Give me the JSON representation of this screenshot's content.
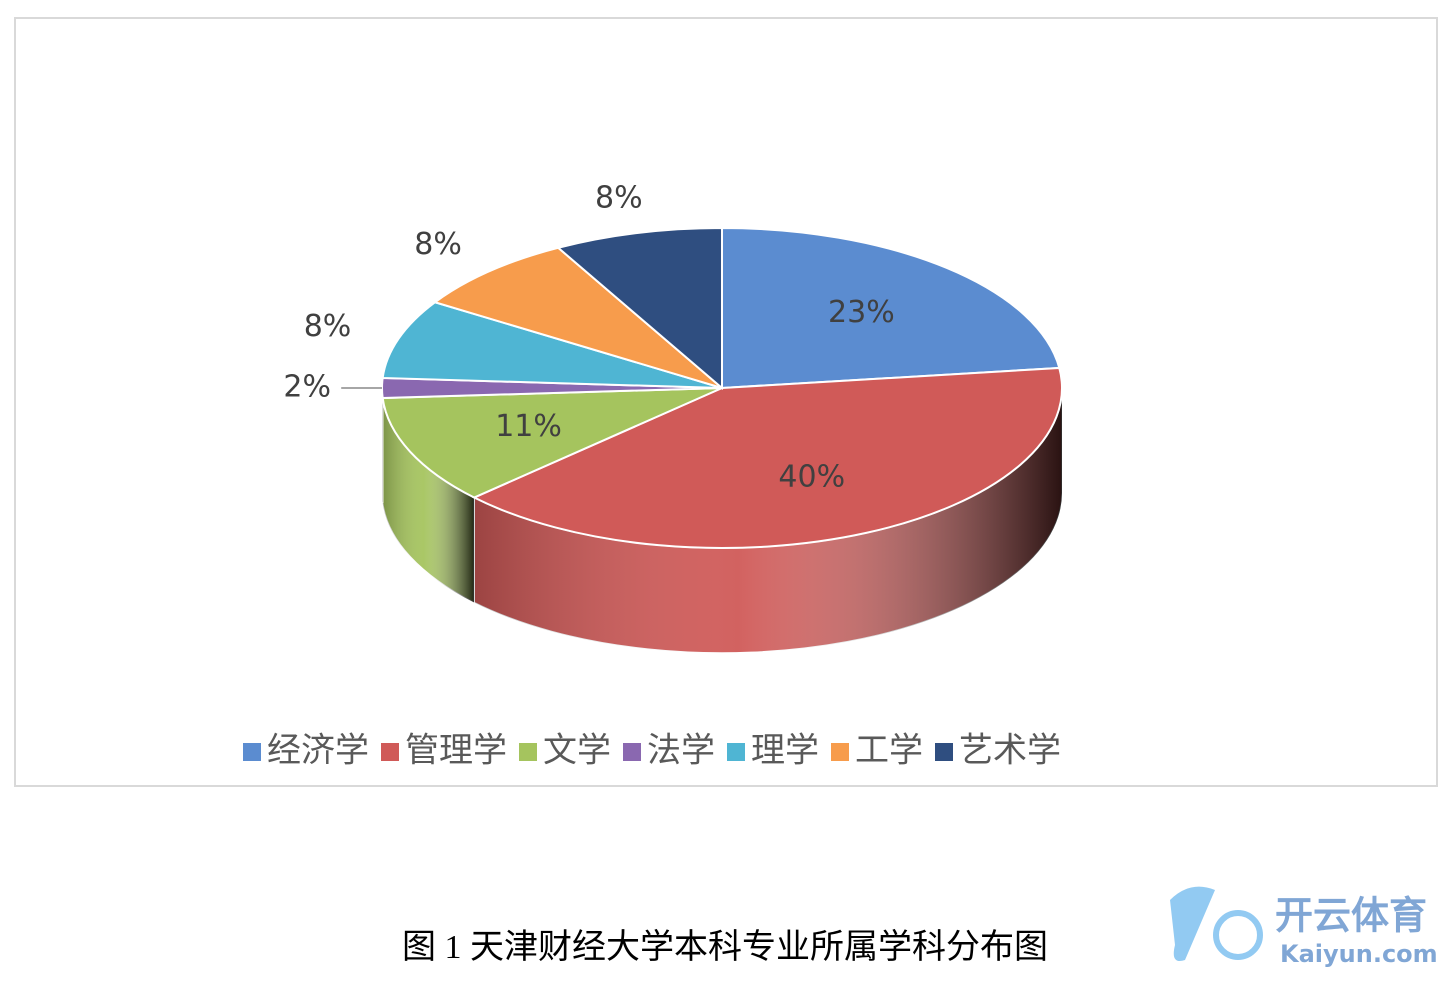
{
  "chart_data": {
    "type": "pie3d",
    "categories": [
      "经济学",
      "管理学",
      "文学",
      "法学",
      "理学",
      "工学",
      "艺术学"
    ],
    "values": [
      23,
      40,
      11,
      2,
      8,
      8,
      8
    ],
    "value_labels": [
      "23%",
      "40%",
      "11%",
      "2%",
      "8%",
      "8%",
      "8%"
    ],
    "colors": [
      "#5b8cd0",
      "#d05a58",
      "#a5c45e",
      "#8a68b0",
      "#4fb5d3",
      "#f79c4c",
      "#2f4e80"
    ],
    "legend": "bottom"
  },
  "caption": "图 1  天津财经大学本科专业所属学科分布图",
  "watermark": {
    "brand": "开云体育",
    "site": "Kaiyun.com"
  }
}
